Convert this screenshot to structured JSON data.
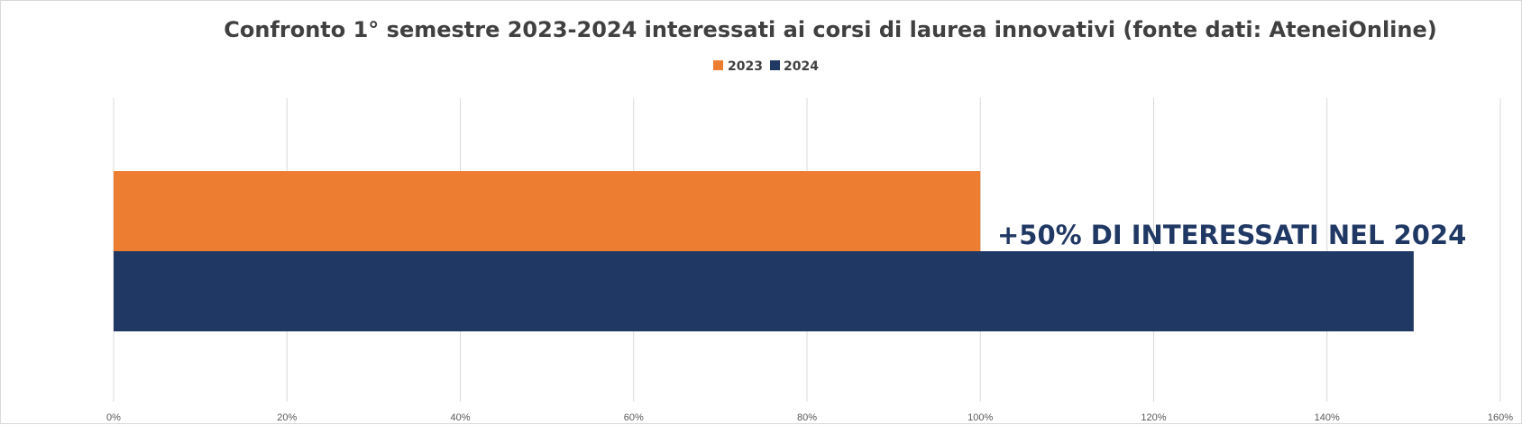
{
  "chart_data": {
    "type": "bar",
    "orientation": "horizontal",
    "title": "Confronto 1° semestre 2023-2024 interessati ai corsi di laurea innovativi (fonte dati: AteneiOnline)",
    "legend_position": "top",
    "xlim": [
      0,
      160
    ],
    "x_ticks": [
      "0%",
      "20%",
      "40%",
      "60%",
      "80%",
      "100%",
      "120%",
      "140%",
      "160%"
    ],
    "x_tick_values": [
      0,
      20,
      40,
      60,
      80,
      100,
      120,
      140,
      160
    ],
    "grid": true,
    "series": [
      {
        "name": "2023",
        "values": [
          100
        ],
        "color": "#ED7D31"
      },
      {
        "name": "2024",
        "values": [
          150
        ],
        "color": "#203864"
      }
    ],
    "annotation": {
      "text": "+50% DI INTERESSATI NEL 2024",
      "color": "#203864"
    }
  }
}
